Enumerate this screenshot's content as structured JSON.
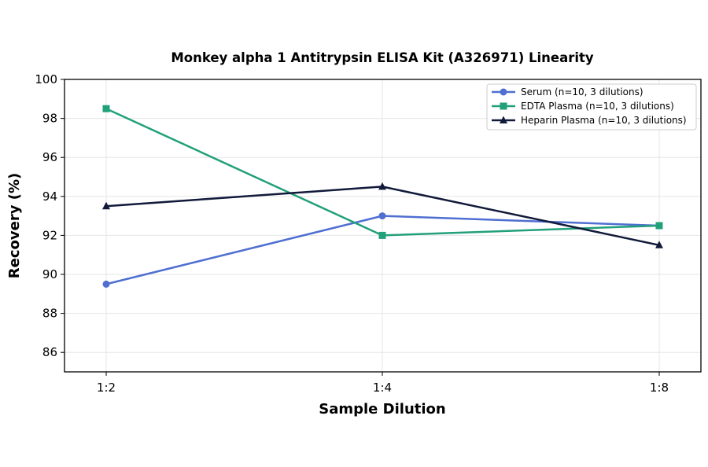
{
  "chart_data": {
    "type": "line",
    "title": "Monkey alpha 1 Antitrypsin ELISA Kit (A326971) Linearity",
    "xlabel": "Sample Dilution",
    "ylabel": "Recovery (%)",
    "categories": [
      "1:2",
      "1:4",
      "1:8"
    ],
    "ylim": [
      85,
      100
    ],
    "yticks": [
      86,
      88,
      90,
      92,
      94,
      96,
      98,
      100
    ],
    "grid": true,
    "legend_position": "top-right",
    "series": [
      {
        "name": "Serum (n=10, 3 dilutions)",
        "values": [
          89.5,
          93.0,
          92.5
        ],
        "color": "#4f6fd1",
        "marker": "circle"
      },
      {
        "name": "EDTA Plasma (n=10, 3 dilutions)",
        "values": [
          98.5,
          92.0,
          92.5
        ],
        "color": "#22a07a",
        "marker": "square"
      },
      {
        "name": "Heparin Plasma (n=10, 3 dilutions)",
        "values": [
          93.5,
          94.5,
          91.5
        ],
        "color": "#111a3a",
        "marker": "triangle"
      }
    ]
  }
}
